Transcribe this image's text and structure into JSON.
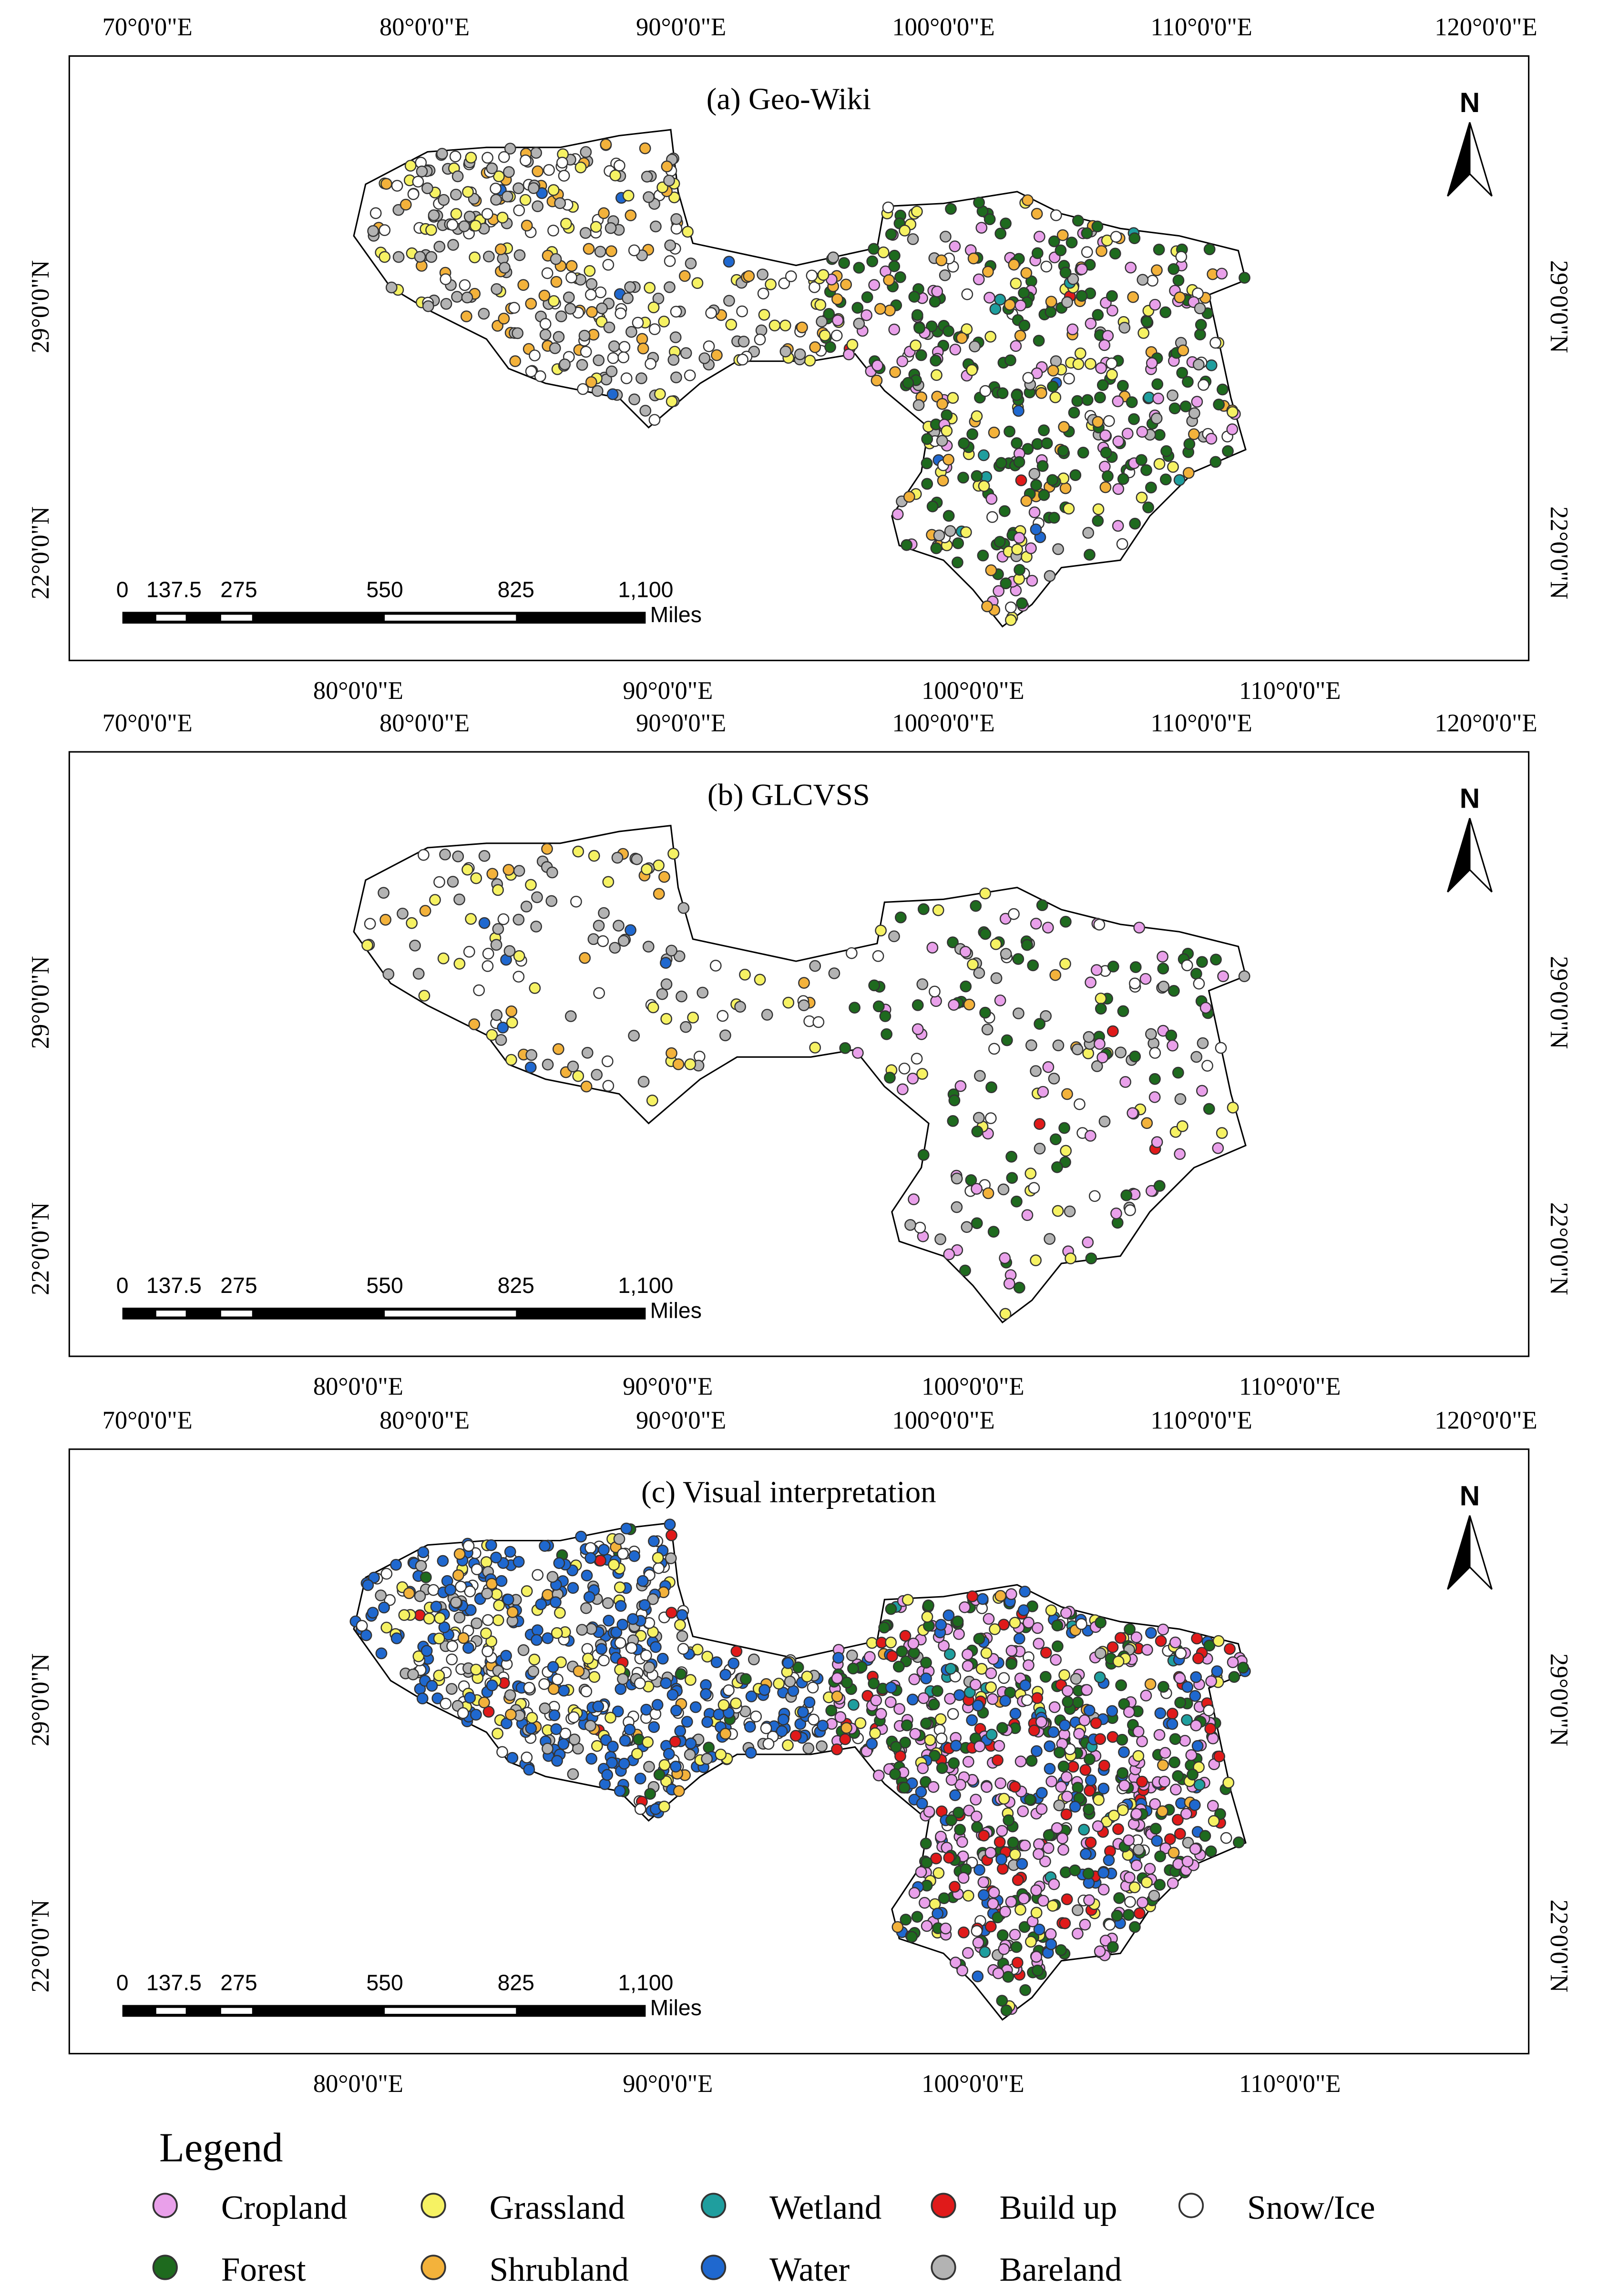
{
  "panels": [
    {
      "title": "(a) Geo-Wiki",
      "top_labels": [
        "70°0'0\"E",
        "80°0'0\"E",
        "90°0'0\"E",
        "100°0'0\"E",
        "110°0'0\"E",
        "120°0'0\"E"
      ],
      "bottom_labels": [
        "80°0'0\"E",
        "90°0'0\"E",
        "100°0'0\"E",
        "110°0'0\"E"
      ],
      "left_labels": [
        "29°0'0\"N",
        "22°0'0\"N"
      ],
      "right_labels": [
        "29°0'0\"N",
        "22°0'0\"N"
      ],
      "north": "N",
      "scale_labels": [
        "0",
        "137.5",
        "275",
        "550",
        "825",
        "1,100"
      ],
      "scale_unit": "Miles"
    },
    {
      "title": "(b) GLCVSS",
      "top_labels": [
        "70°0'0\"E",
        "80°0'0\"E",
        "90°0'0\"E",
        "100°0'0\"E",
        "110°0'0\"E",
        "120°0'0\"E"
      ],
      "bottom_labels": [
        "80°0'0\"E",
        "90°0'0\"E",
        "100°0'0\"E",
        "110°0'0\"E"
      ],
      "left_labels": [
        "29°0'0\"N",
        "22°0'0\"N"
      ],
      "right_labels": [
        "29°0'0\"N",
        "22°0'0\"N"
      ],
      "north": "N",
      "scale_labels": [
        "0",
        "137.5",
        "275",
        "550",
        "825",
        "1,100"
      ],
      "scale_unit": "Miles"
    },
    {
      "title": "(c) Visual interpretation",
      "top_labels": [
        "70°0'0\"E",
        "80°0'0\"E",
        "90°0'0\"E",
        "100°0'0\"E",
        "110°0'0\"E",
        "120°0'0\"E"
      ],
      "bottom_labels": [
        "80°0'0\"E",
        "90°0'0\"E",
        "100°0'0\"E",
        "110°0'0\"E"
      ],
      "left_labels": [
        "29°0'0\"N",
        "22°0'0\"N"
      ],
      "right_labels": [
        "29°0'0\"N",
        "22°0'0\"N"
      ],
      "north": "N",
      "scale_labels": [
        "0",
        "137.5",
        "275",
        "550",
        "825",
        "1,100"
      ],
      "scale_unit": "Miles"
    }
  ],
  "legend": {
    "title": "Legend",
    "items": [
      {
        "label": "Cropland",
        "color": "#e9a0ea"
      },
      {
        "label": "Grassland",
        "color": "#f6f263"
      },
      {
        "label": "Wetland",
        "color": "#1f9e9e"
      },
      {
        "label": "Build up",
        "color": "#e01a1a"
      },
      {
        "label": "Snow/Ice",
        "color": "#ffffff"
      },
      {
        "label": "Forest",
        "color": "#1e6a1e"
      },
      {
        "label": "Shrubland",
        "color": "#f3b23b"
      },
      {
        "label": "Water",
        "color": "#1f68cf"
      },
      {
        "label": "Bareland",
        "color": "#b3b3b3"
      }
    ]
  }
}
